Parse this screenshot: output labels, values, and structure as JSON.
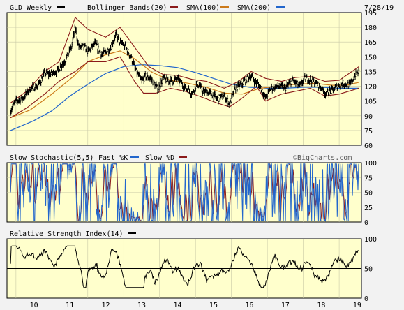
{
  "chart_data": [
    {
      "type": "line",
      "title": "GLD Weekly",
      "date": "7/28/19",
      "legend": [
        {
          "label": "GLD Weekly",
          "color": "#000000"
        },
        {
          "label": "Bollinger Bands(20)",
          "color": "#8b1a1a"
        },
        {
          "label": "SMA(100)",
          "color": "#8b1a1a"
        },
        {
          "label": "SMA(200)",
          "color": "#2266cc"
        }
      ],
      "ylim": [
        60,
        195
      ],
      "yticks": [
        60,
        75,
        90,
        105,
        120,
        135,
        150,
        165,
        180,
        195
      ],
      "x_years": [
        "10",
        "11",
        "12",
        "13",
        "14",
        "15",
        "16",
        "17",
        "18",
        "19"
      ],
      "price": [
        [
          2009.85,
          95
        ],
        [
          2010.0,
          105
        ],
        [
          2010.2,
          108
        ],
        [
          2010.4,
          118
        ],
        [
          2010.6,
          120
        ],
        [
          2010.8,
          133
        ],
        [
          2011.0,
          132
        ],
        [
          2011.2,
          138
        ],
        [
          2011.4,
          148
        ],
        [
          2011.55,
          160
        ],
        [
          2011.65,
          180
        ],
        [
          2011.75,
          160
        ],
        [
          2011.9,
          160
        ],
        [
          2012.0,
          155
        ],
        [
          2012.2,
          163
        ],
        [
          2012.4,
          152
        ],
        [
          2012.6,
          158
        ],
        [
          2012.8,
          172
        ],
        [
          2012.9,
          165
        ],
        [
          2013.0,
          163
        ],
        [
          2013.2,
          150
        ],
        [
          2013.35,
          135
        ],
        [
          2013.5,
          125
        ],
        [
          2013.6,
          130
        ],
        [
          2013.75,
          128
        ],
        [
          2013.95,
          117
        ],
        [
          2014.1,
          128
        ],
        [
          2014.3,
          125
        ],
        [
          2014.5,
          127
        ],
        [
          2014.7,
          119
        ],
        [
          2014.9,
          113
        ],
        [
          2015.05,
          123
        ],
        [
          2015.2,
          115
        ],
        [
          2015.4,
          113
        ],
        [
          2015.6,
          107
        ],
        [
          2015.8,
          110
        ],
        [
          2015.95,
          102
        ],
        [
          2016.1,
          117
        ],
        [
          2016.3,
          123
        ],
        [
          2016.5,
          130
        ],
        [
          2016.6,
          128
        ],
        [
          2016.8,
          120
        ],
        [
          2016.95,
          108
        ],
        [
          2017.1,
          118
        ],
        [
          2017.3,
          120
        ],
        [
          2017.5,
          118
        ],
        [
          2017.7,
          126
        ],
        [
          2017.9,
          120
        ],
        [
          2018.05,
          128
        ],
        [
          2018.25,
          126
        ],
        [
          2018.45,
          120
        ],
        [
          2018.6,
          113
        ],
        [
          2018.8,
          115
        ],
        [
          2018.95,
          120
        ],
        [
          2019.1,
          123
        ],
        [
          2019.3,
          121
        ],
        [
          2019.45,
          132
        ],
        [
          2019.55,
          135
        ]
      ],
      "sma100": [
        [
          2009.85,
          88
        ],
        [
          2010.4,
          96
        ],
        [
          2011.0,
          112
        ],
        [
          2011.6,
          130
        ],
        [
          2012.0,
          145
        ],
        [
          2012.5,
          152
        ],
        [
          2012.9,
          156
        ],
        [
          2013.3,
          148
        ],
        [
          2013.8,
          134
        ],
        [
          2014.3,
          126
        ],
        [
          2014.8,
          123
        ],
        [
          2015.3,
          119
        ],
        [
          2015.8,
          113
        ],
        [
          2016.3,
          112
        ],
        [
          2016.8,
          118
        ],
        [
          2017.3,
          120
        ],
        [
          2017.8,
          122
        ],
        [
          2018.3,
          123
        ],
        [
          2018.8,
          121
        ],
        [
          2019.2,
          121
        ],
        [
          2019.55,
          124
        ]
      ],
      "sma200": [
        [
          2009.85,
          75
        ],
        [
          2010.5,
          85
        ],
        [
          2011.0,
          95
        ],
        [
          2011.5,
          110
        ],
        [
          2012.0,
          122
        ],
        [
          2012.5,
          133
        ],
        [
          2013.0,
          140
        ],
        [
          2013.5,
          142
        ],
        [
          2014.0,
          141
        ],
        [
          2014.5,
          139
        ],
        [
          2015.0,
          134
        ],
        [
          2015.5,
          128
        ],
        [
          2016.0,
          122
        ],
        [
          2016.5,
          119
        ],
        [
          2017.0,
          118
        ],
        [
          2017.5,
          118
        ],
        [
          2018.0,
          119
        ],
        [
          2018.5,
          119
        ],
        [
          2019.0,
          118
        ],
        [
          2019.55,
          118
        ]
      ],
      "bb_upper": [
        [
          2009.85,
          103
        ],
        [
          2010.3,
          115
        ],
        [
          2010.8,
          135
        ],
        [
          2011.2,
          145
        ],
        [
          2011.65,
          190
        ],
        [
          2012.0,
          178
        ],
        [
          2012.5,
          170
        ],
        [
          2012.9,
          180
        ],
        [
          2013.3,
          160
        ],
        [
          2013.7,
          140
        ],
        [
          2014.1,
          132
        ],
        [
          2014.5,
          131
        ],
        [
          2014.9,
          127
        ],
        [
          2015.3,
          125
        ],
        [
          2015.8,
          118
        ],
        [
          2016.2,
          125
        ],
        [
          2016.55,
          135
        ],
        [
          2016.95,
          128
        ],
        [
          2017.4,
          125
        ],
        [
          2017.8,
          129
        ],
        [
          2018.2,
          130
        ],
        [
          2018.6,
          125
        ],
        [
          2019.0,
          126
        ],
        [
          2019.55,
          140
        ]
      ],
      "bb_lower": [
        [
          2009.85,
          88
        ],
        [
          2010.3,
          98
        ],
        [
          2010.8,
          112
        ],
        [
          2011.2,
          125
        ],
        [
          2011.65,
          135
        ],
        [
          2012.0,
          145
        ],
        [
          2012.5,
          145
        ],
        [
          2012.9,
          150
        ],
        [
          2013.3,
          125
        ],
        [
          2013.55,
          113
        ],
        [
          2013.9,
          113
        ],
        [
          2014.3,
          118
        ],
        [
          2014.7,
          115
        ],
        [
          2015.1,
          110
        ],
        [
          2015.6,
          103
        ],
        [
          2015.95,
          99
        ],
        [
          2016.3,
          108
        ],
        [
          2016.7,
          120
        ],
        [
          2016.95,
          105
        ],
        [
          2017.4,
          112
        ],
        [
          2017.8,
          115
        ],
        [
          2018.2,
          118
        ],
        [
          2018.6,
          110
        ],
        [
          2019.0,
          112
        ],
        [
          2019.55,
          118
        ]
      ]
    },
    {
      "type": "line",
      "title": "Slow Stochastic(5,5)",
      "legend": [
        {
          "label": "Fast %K",
          "color": "#2266cc"
        },
        {
          "label": "Slow %D",
          "color": "#8b1a1a"
        }
      ],
      "ylim": [
        0,
        100
      ],
      "yticks": [
        0,
        25,
        50,
        75,
        100
      ]
    },
    {
      "type": "line",
      "title": "Relative Strength Index(14)",
      "legend": [
        {
          "label": "",
          "color": "#000000"
        }
      ],
      "ylim": [
        0,
        100
      ],
      "yticks": [
        0,
        50,
        100
      ],
      "reference_line": 50
    }
  ],
  "credit": "©BigCharts.com"
}
